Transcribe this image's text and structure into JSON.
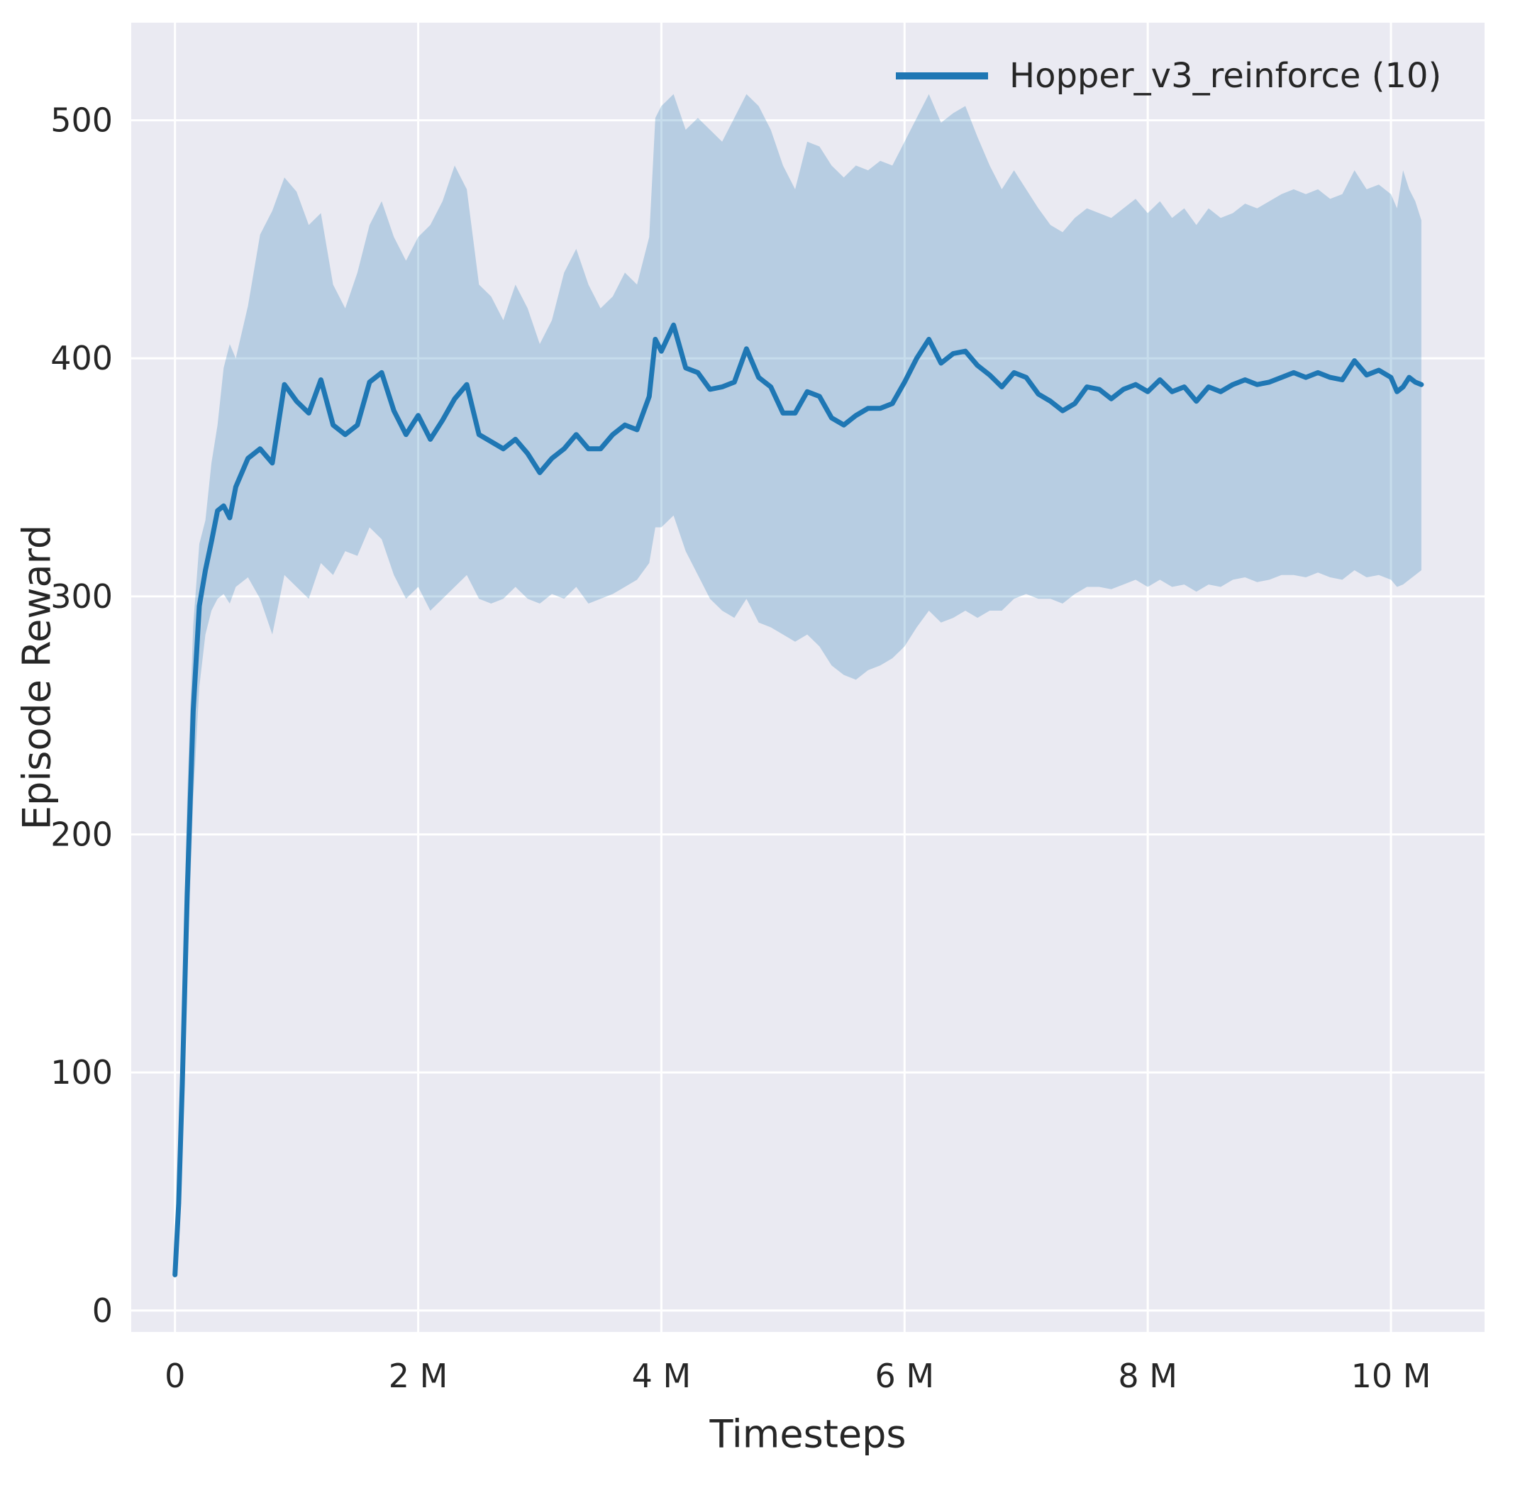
{
  "figure": {
    "xlabel": "Timesteps",
    "ylabel": "Episode Reward",
    "legend_label": "Hopper_v3_reinforce (10)"
  },
  "chart_data": {
    "type": "line",
    "title": "",
    "xlabel": "Timesteps",
    "ylabel": "Episode Reward",
    "x_unit": "millions of timesteps",
    "xlim": [
      -0.36,
      10.77
    ],
    "ylim": [
      -9,
      541
    ],
    "grid": true,
    "xticks": {
      "values": [
        0,
        2,
        4,
        6,
        8,
        10
      ],
      "labels": [
        "0",
        "2 M",
        "4 M",
        "6 M",
        "8 M",
        "10 M"
      ]
    },
    "yticks": {
      "values": [
        0,
        100,
        200,
        300,
        400,
        500
      ],
      "labels": [
        "0",
        "100",
        "200",
        "300",
        "400",
        "500"
      ]
    },
    "legend": {
      "position": "upper right",
      "entries": [
        {
          "label": "Hopper_v3_reinforce (10)",
          "color": "#1f77b4"
        }
      ]
    },
    "colors": {
      "line": "#1f77b4",
      "band": "rgba(31,119,180,0.25)",
      "plot_bg": "#eaeaf2",
      "grid": "#ffffff",
      "text": "#262626"
    },
    "series": [
      {
        "name": "Hopper_v3_reinforce (10)",
        "points_format": [
          "x_millions",
          "mean",
          "band_low",
          "band_high"
        ],
        "points": [
          [
            0.0,
            15,
            13,
            18
          ],
          [
            0.03,
            45,
            32,
            60
          ],
          [
            0.06,
            95,
            72,
            125
          ],
          [
            0.1,
            175,
            140,
            215
          ],
          [
            0.15,
            252,
            215,
            288
          ],
          [
            0.2,
            296,
            262,
            322
          ],
          [
            0.25,
            311,
            284,
            332
          ],
          [
            0.3,
            323,
            294,
            356
          ],
          [
            0.35,
            336,
            299,
            372
          ],
          [
            0.4,
            338,
            301,
            396
          ],
          [
            0.45,
            333,
            297,
            406
          ],
          [
            0.5,
            346,
            304,
            400
          ],
          [
            0.6,
            358,
            308,
            422
          ],
          [
            0.7,
            362,
            299,
            452
          ],
          [
            0.8,
            356,
            284,
            462
          ],
          [
            0.9,
            389,
            309,
            476
          ],
          [
            1.0,
            382,
            304,
            470
          ],
          [
            1.1,
            377,
            299,
            456
          ],
          [
            1.2,
            391,
            314,
            461
          ],
          [
            1.3,
            372,
            309,
            431
          ],
          [
            1.4,
            368,
            319,
            421
          ],
          [
            1.5,
            372,
            317,
            436
          ],
          [
            1.6,
            390,
            329,
            456
          ],
          [
            1.7,
            394,
            324,
            466
          ],
          [
            1.8,
            378,
            309,
            451
          ],
          [
            1.9,
            368,
            299,
            441
          ],
          [
            2.0,
            376,
            304,
            451
          ],
          [
            2.1,
            366,
            294,
            456
          ],
          [
            2.2,
            374,
            299,
            466
          ],
          [
            2.3,
            383,
            304,
            481
          ],
          [
            2.4,
            389,
            309,
            471
          ],
          [
            2.5,
            368,
            299,
            431
          ],
          [
            2.6,
            365,
            297,
            426
          ],
          [
            2.7,
            362,
            299,
            416
          ],
          [
            2.8,
            366,
            304,
            431
          ],
          [
            2.9,
            360,
            299,
            421
          ],
          [
            3.0,
            352,
            297,
            406
          ],
          [
            3.1,
            358,
            301,
            416
          ],
          [
            3.2,
            362,
            299,
            436
          ],
          [
            3.3,
            368,
            304,
            446
          ],
          [
            3.4,
            362,
            297,
            431
          ],
          [
            3.5,
            362,
            299,
            421
          ],
          [
            3.6,
            368,
            301,
            426
          ],
          [
            3.7,
            372,
            304,
            436
          ],
          [
            3.8,
            370,
            307,
            431
          ],
          [
            3.9,
            384,
            314,
            451
          ],
          [
            3.95,
            408,
            329,
            501
          ],
          [
            4.0,
            403,
            329,
            506
          ],
          [
            4.1,
            414,
            334,
            511
          ],
          [
            4.2,
            396,
            319,
            496
          ],
          [
            4.3,
            394,
            309,
            501
          ],
          [
            4.4,
            387,
            299,
            496
          ],
          [
            4.5,
            388,
            294,
            491
          ],
          [
            4.6,
            390,
            291,
            501
          ],
          [
            4.7,
            404,
            299,
            511
          ],
          [
            4.8,
            392,
            289,
            506
          ],
          [
            4.9,
            388,
            287,
            496
          ],
          [
            5.0,
            377,
            284,
            481
          ],
          [
            5.1,
            377,
            281,
            471
          ],
          [
            5.2,
            386,
            284,
            491
          ],
          [
            5.3,
            384,
            279,
            489
          ],
          [
            5.4,
            375,
            271,
            481
          ],
          [
            5.5,
            372,
            267,
            476
          ],
          [
            5.6,
            376,
            265,
            481
          ],
          [
            5.7,
            379,
            269,
            479
          ],
          [
            5.8,
            379,
            271,
            483
          ],
          [
            5.9,
            381,
            274,
            481
          ],
          [
            6.0,
            390,
            279,
            491
          ],
          [
            6.1,
            400,
            287,
            501
          ],
          [
            6.2,
            408,
            294,
            511
          ],
          [
            6.3,
            398,
            289,
            499
          ],
          [
            6.4,
            402,
            291,
            503
          ],
          [
            6.5,
            403,
            294,
            506
          ],
          [
            6.6,
            397,
            291,
            493
          ],
          [
            6.7,
            393,
            294,
            481
          ],
          [
            6.8,
            388,
            294,
            471
          ],
          [
            6.9,
            394,
            299,
            479
          ],
          [
            7.0,
            392,
            301,
            471
          ],
          [
            7.1,
            385,
            299,
            463
          ],
          [
            7.2,
            382,
            299,
            456
          ],
          [
            7.3,
            378,
            297,
            453
          ],
          [
            7.4,
            381,
            301,
            459
          ],
          [
            7.5,
            388,
            304,
            463
          ],
          [
            7.6,
            387,
            304,
            461
          ],
          [
            7.7,
            383,
            303,
            459
          ],
          [
            7.8,
            387,
            305,
            463
          ],
          [
            7.9,
            389,
            307,
            467
          ],
          [
            8.0,
            386,
            304,
            461
          ],
          [
            8.1,
            391,
            307,
            466
          ],
          [
            8.2,
            386,
            304,
            459
          ],
          [
            8.3,
            388,
            305,
            463
          ],
          [
            8.4,
            382,
            302,
            456
          ],
          [
            8.5,
            388,
            305,
            463
          ],
          [
            8.6,
            386,
            304,
            459
          ],
          [
            8.7,
            389,
            307,
            461
          ],
          [
            8.8,
            391,
            308,
            465
          ],
          [
            8.9,
            389,
            306,
            463
          ],
          [
            9.0,
            390,
            307,
            466
          ],
          [
            9.1,
            392,
            309,
            469
          ],
          [
            9.2,
            394,
            309,
            471
          ],
          [
            9.3,
            392,
            308,
            469
          ],
          [
            9.4,
            394,
            310,
            471
          ],
          [
            9.5,
            392,
            308,
            467
          ],
          [
            9.6,
            391,
            307,
            469
          ],
          [
            9.7,
            399,
            311,
            479
          ],
          [
            9.8,
            393,
            308,
            471
          ],
          [
            9.9,
            395,
            309,
            473
          ],
          [
            10.0,
            392,
            307,
            469
          ],
          [
            10.05,
            386,
            304,
            463
          ],
          [
            10.1,
            388,
            305,
            479
          ],
          [
            10.15,
            392,
            307,
            471
          ],
          [
            10.2,
            390,
            309,
            466
          ],
          [
            10.25,
            389,
            311,
            458
          ]
        ]
      }
    ]
  }
}
